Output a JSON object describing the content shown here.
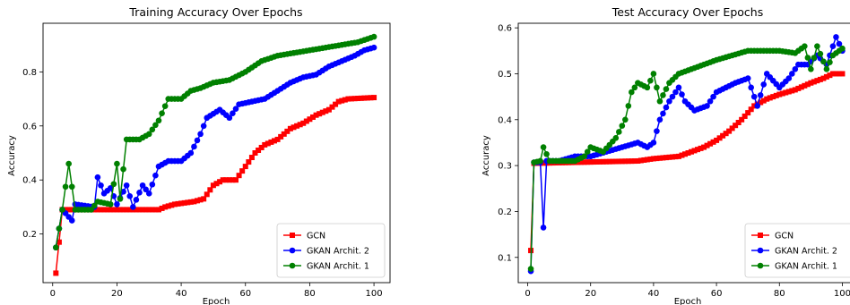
{
  "chart_data": [
    {
      "type": "line",
      "title": "Training Accuracy Over Epochs",
      "xlabel": "Epoch",
      "ylabel": "Accuracy",
      "xlim": [
        -3,
        105
      ],
      "ylim": [
        0.02,
        0.98
      ],
      "xticks": [
        0,
        20,
        40,
        60,
        80,
        100
      ],
      "yticks": [
        0.2,
        0.4,
        0.6,
        0.8
      ],
      "ytick_labels": [
        "0.2",
        "0.4",
        "0.6",
        "0.8"
      ],
      "grid": false,
      "legend_position": "lower-right",
      "series": [
        {
          "name": "GCN",
          "color": "#ff0000",
          "marker": "square",
          "keypoints": [
            [
              1,
              0.055
            ],
            [
              2,
              0.17
            ],
            [
              3,
              0.29
            ],
            [
              33,
              0.29
            ],
            [
              35,
              0.3
            ],
            [
              38,
              0.31
            ],
            [
              44,
              0.32
            ],
            [
              47,
              0.33
            ],
            [
              50,
              0.38
            ],
            [
              53,
              0.4
            ],
            [
              57,
              0.4
            ],
            [
              60,
              0.45
            ],
            [
              63,
              0.5
            ],
            [
              66,
              0.53
            ],
            [
              70,
              0.55
            ],
            [
              74,
              0.59
            ],
            [
              78,
              0.61
            ],
            [
              82,
              0.64
            ],
            [
              86,
              0.66
            ],
            [
              89,
              0.69
            ],
            [
              92,
              0.7
            ],
            [
              100,
              0.705
            ]
          ]
        },
        {
          "name": "GKAN Archit. 2",
          "color": "#0000ff",
          "marker": "circle",
          "keypoints": [
            [
              1,
              0.15
            ],
            [
              3,
              0.29
            ],
            [
              6,
              0.25
            ],
            [
              7,
              0.31
            ],
            [
              13,
              0.3
            ],
            [
              14,
              0.41
            ],
            [
              16,
              0.35
            ],
            [
              18,
              0.37
            ],
            [
              20,
              0.31
            ],
            [
              23,
              0.38
            ],
            [
              25,
              0.3
            ],
            [
              28,
              0.38
            ],
            [
              30,
              0.35
            ],
            [
              33,
              0.45
            ],
            [
              36,
              0.47
            ],
            [
              40,
              0.47
            ],
            [
              43,
              0.5
            ],
            [
              46,
              0.57
            ],
            [
              48,
              0.63
            ],
            [
              52,
              0.66
            ],
            [
              55,
              0.63
            ],
            [
              58,
              0.68
            ],
            [
              62,
              0.69
            ],
            [
              66,
              0.7
            ],
            [
              70,
              0.73
            ],
            [
              74,
              0.76
            ],
            [
              78,
              0.78
            ],
            [
              82,
              0.79
            ],
            [
              86,
              0.82
            ],
            [
              90,
              0.84
            ],
            [
              94,
              0.86
            ],
            [
              97,
              0.88
            ],
            [
              100,
              0.89
            ]
          ]
        },
        {
          "name": "GKAN Archit. 1",
          "color": "#008000",
          "marker": "circle",
          "keypoints": [
            [
              1,
              0.15
            ],
            [
              3,
              0.29
            ],
            [
              5,
              0.46
            ],
            [
              7,
              0.29
            ],
            [
              12,
              0.29
            ],
            [
              14,
              0.32
            ],
            [
              18,
              0.31
            ],
            [
              20,
              0.46
            ],
            [
              21,
              0.33
            ],
            [
              23,
              0.55
            ],
            [
              27,
              0.55
            ],
            [
              30,
              0.57
            ],
            [
              33,
              0.62
            ],
            [
              36,
              0.7
            ],
            [
              40,
              0.7
            ],
            [
              43,
              0.73
            ],
            [
              46,
              0.74
            ],
            [
              50,
              0.76
            ],
            [
              55,
              0.77
            ],
            [
              60,
              0.8
            ],
            [
              65,
              0.84
            ],
            [
              70,
              0.86
            ],
            [
              75,
              0.87
            ],
            [
              80,
              0.88
            ],
            [
              85,
              0.89
            ],
            [
              90,
              0.9
            ],
            [
              95,
              0.91
            ],
            [
              100,
              0.93
            ]
          ]
        }
      ],
      "legend": [
        "GCN",
        "GKAN Archit. 2",
        "GKAN Archit. 1"
      ]
    },
    {
      "type": "line",
      "title": "Test Accuracy Over Epochs",
      "xlabel": "Epoch",
      "ylabel": "Accuracy",
      "xlim": [
        -3,
        105
      ],
      "ylim": [
        0.045,
        0.61
      ],
      "xticks": [
        0,
        20,
        40,
        60,
        80,
        100
      ],
      "yticks": [
        0.1,
        0.2,
        0.3,
        0.4,
        0.5,
        0.6
      ],
      "ytick_labels": [
        "0.1",
        "0.2",
        "0.3",
        "0.4",
        "0.5",
        "0.6"
      ],
      "grid": false,
      "legend_position": "lower-right",
      "series": [
        {
          "name": "GCN",
          "color": "#ff0000",
          "marker": "square",
          "keypoints": [
            [
              1,
              0.115
            ],
            [
              2,
              0.305
            ],
            [
              15,
              0.307
            ],
            [
              35,
              0.31
            ],
            [
              40,
              0.315
            ],
            [
              48,
              0.32
            ],
            [
              52,
              0.33
            ],
            [
              56,
              0.34
            ],
            [
              60,
              0.355
            ],
            [
              64,
              0.375
            ],
            [
              68,
              0.4
            ],
            [
              72,
              0.43
            ],
            [
              76,
              0.445
            ],
            [
              80,
              0.455
            ],
            [
              85,
              0.465
            ],
            [
              90,
              0.48
            ],
            [
              94,
              0.49
            ],
            [
              97,
              0.5
            ],
            [
              100,
              0.5
            ]
          ]
        },
        {
          "name": "GKAN Archit. 2",
          "color": "#0000ff",
          "marker": "circle",
          "keypoints": [
            [
              1,
              0.07
            ],
            [
              2,
              0.307
            ],
            [
              4,
              0.307
            ],
            [
              5,
              0.165
            ],
            [
              6,
              0.31
            ],
            [
              10,
              0.31
            ],
            [
              15,
              0.32
            ],
            [
              20,
              0.32
            ],
            [
              25,
              0.33
            ],
            [
              30,
              0.34
            ],
            [
              35,
              0.35
            ],
            [
              38,
              0.34
            ],
            [
              40,
              0.35
            ],
            [
              42,
              0.4
            ],
            [
              45,
              0.44
            ],
            [
              48,
              0.47
            ],
            [
              50,
              0.44
            ],
            [
              53,
              0.42
            ],
            [
              57,
              0.43
            ],
            [
              60,
              0.46
            ],
            [
              63,
              0.47
            ],
            [
              66,
              0.48
            ],
            [
              70,
              0.49
            ],
            [
              73,
              0.43
            ],
            [
              76,
              0.5
            ],
            [
              80,
              0.47
            ],
            [
              83,
              0.49
            ],
            [
              86,
              0.52
            ],
            [
              89,
              0.52
            ],
            [
              92,
              0.54
            ],
            [
              95,
              0.52
            ],
            [
              98,
              0.58
            ],
            [
              100,
              0.55
            ]
          ]
        },
        {
          "name": "GKAN Archit. 1",
          "color": "#008000",
          "marker": "circle",
          "keypoints": [
            [
              1,
              0.075
            ],
            [
              2,
              0.307
            ],
            [
              4,
              0.31
            ],
            [
              5,
              0.34
            ],
            [
              7,
              0.31
            ],
            [
              10,
              0.31
            ],
            [
              15,
              0.31
            ],
            [
              18,
              0.32
            ],
            [
              20,
              0.34
            ],
            [
              24,
              0.33
            ],
            [
              28,
              0.36
            ],
            [
              31,
              0.4
            ],
            [
              33,
              0.46
            ],
            [
              35,
              0.48
            ],
            [
              38,
              0.47
            ],
            [
              40,
              0.5
            ],
            [
              42,
              0.44
            ],
            [
              45,
              0.48
            ],
            [
              48,
              0.5
            ],
            [
              52,
              0.51
            ],
            [
              56,
              0.52
            ],
            [
              60,
              0.53
            ],
            [
              65,
              0.54
            ],
            [
              70,
              0.55
            ],
            [
              75,
              0.55
            ],
            [
              80,
              0.55
            ],
            [
              85,
              0.545
            ],
            [
              88,
              0.56
            ],
            [
              90,
              0.51
            ],
            [
              92,
              0.56
            ],
            [
              95,
              0.51
            ],
            [
              97,
              0.54
            ],
            [
              100,
              0.555
            ]
          ]
        }
      ],
      "legend": [
        "GCN",
        "GKAN Archit. 2",
        "GKAN Archit. 1"
      ]
    }
  ]
}
